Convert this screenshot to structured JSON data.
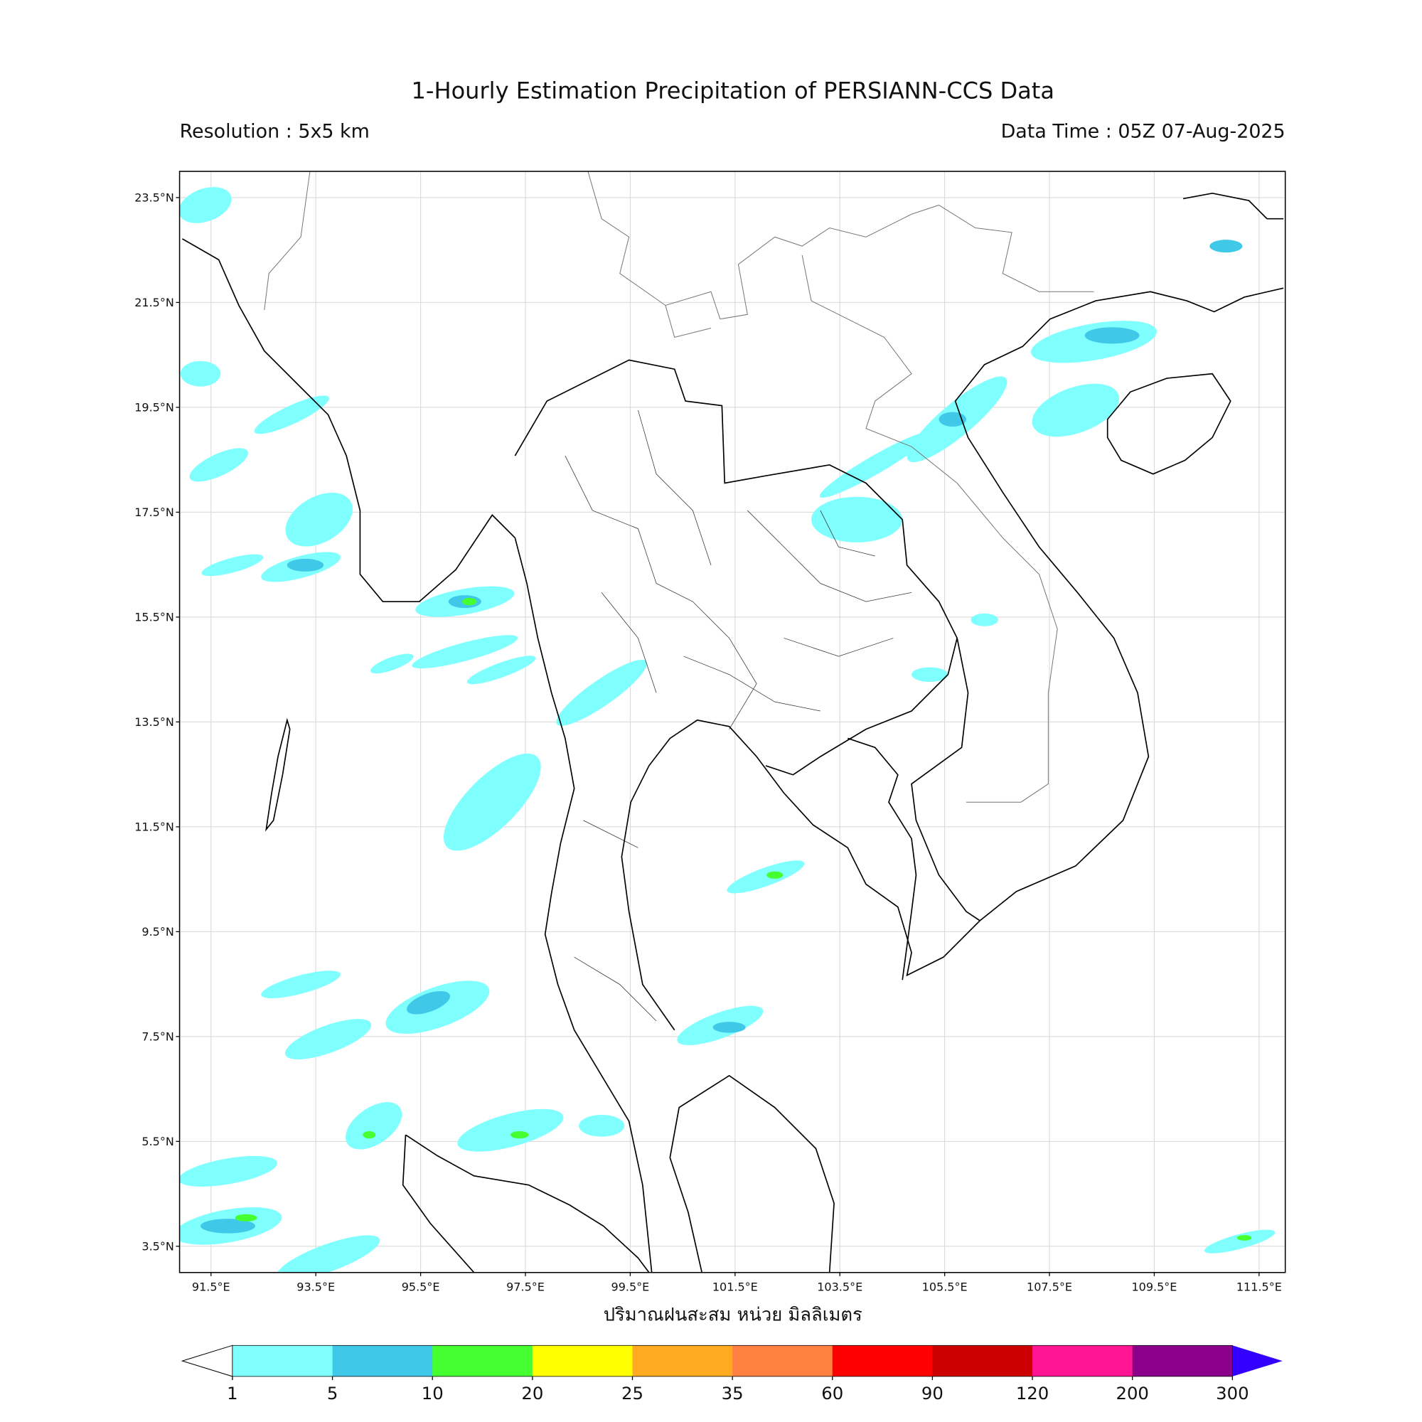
{
  "header": {
    "title": "1-Hourly Estimation Precipitation of PERSIANN-CCS Data",
    "resolution": "Resolution : 5x5 km",
    "data_time": "Data Time : 05Z 07-Aug-2025"
  },
  "map": {
    "xlim": [
      90.9,
      112
    ],
    "ylim": [
      3,
      24
    ],
    "lat_ticks": [
      {
        "value": 23.5,
        "label": "23.5°N"
      },
      {
        "value": 21.5,
        "label": "21.5°N"
      },
      {
        "value": 19.5,
        "label": "19.5°N"
      },
      {
        "value": 17.5,
        "label": "17.5°N"
      },
      {
        "value": 15.5,
        "label": "15.5°N"
      },
      {
        "value": 13.5,
        "label": "13.5°N"
      },
      {
        "value": 11.5,
        "label": "11.5°N"
      },
      {
        "value": 9.5,
        "label": "9.5°N"
      },
      {
        "value": 7.5,
        "label": "7.5°N"
      },
      {
        "value": 5.5,
        "label": "5.5°N"
      },
      {
        "value": 3.5,
        "label": "3.5°N"
      }
    ],
    "lon_ticks": [
      {
        "value": 91.5,
        "label": "91.5°E"
      },
      {
        "value": 93.5,
        "label": "93.5°E"
      },
      {
        "value": 95.5,
        "label": "95.5°E"
      },
      {
        "value": 97.5,
        "label": "97.5°E"
      },
      {
        "value": 99.5,
        "label": "99.5°E"
      },
      {
        "value": 101.5,
        "label": "101.5°E"
      },
      {
        "value": 103.5,
        "label": "103.5°E"
      },
      {
        "value": 105.5,
        "label": "105.5°E"
      },
      {
        "value": 107.5,
        "label": "107.5°E"
      },
      {
        "value": 109.5,
        "label": "109.5°E"
      },
      {
        "value": 111.5,
        "label": "111.5°E"
      }
    ],
    "xlabel": "ปริมาณฝนสะสม หน่วย มิลลิเมตร"
  },
  "colorbar": {
    "levels": [
      1,
      5,
      10,
      20,
      25,
      35,
      60,
      90,
      120,
      200,
      300
    ],
    "colors": [
      "#80ffff",
      "#40c8e8",
      "#45ff30",
      "#ffff00",
      "#ffaa20",
      "#ff8040",
      "#ff0000",
      "#cc0000",
      "#ff1493",
      "#8b008b"
    ],
    "under_color": "#ffffff",
    "over_color": "#3300ff"
  }
}
